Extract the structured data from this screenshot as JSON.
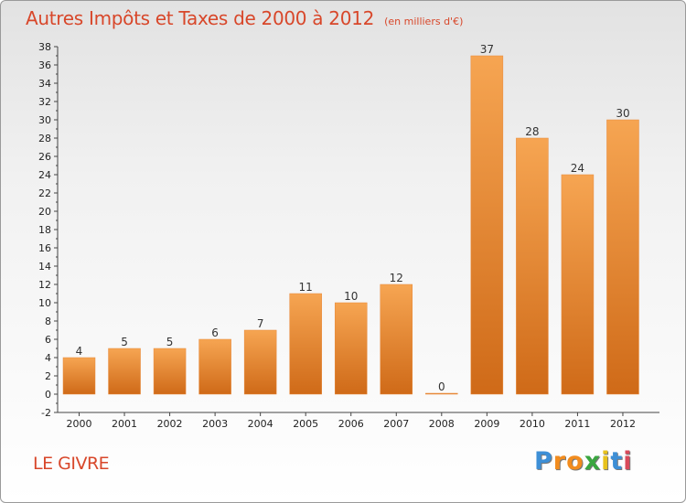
{
  "chart_data": {
    "type": "bar",
    "title": "Autres Impôts et Taxes de 2000 à 2012",
    "subtitle": "(en milliers d'€)",
    "categories": [
      "2000",
      "2001",
      "2002",
      "2003",
      "2004",
      "2005",
      "2006",
      "2007",
      "2008",
      "2009",
      "2010",
      "2011",
      "2012"
    ],
    "values": [
      4,
      5,
      5,
      6,
      7,
      11,
      10,
      12,
      0,
      37,
      28,
      24,
      30
    ],
    "value_labels": [
      "4",
      "5",
      "5",
      "6",
      "7",
      "11",
      "10",
      "12",
      "0",
      "37",
      "28",
      "24",
      "30"
    ],
    "ylim": [
      -2,
      38
    ],
    "yticks": [
      -2,
      0,
      2,
      4,
      6,
      8,
      10,
      12,
      14,
      16,
      18,
      20,
      22,
      24,
      26,
      28,
      30,
      32,
      34,
      36,
      38
    ],
    "grid": false,
    "bar_color": "#f0913d"
  },
  "place_name": "LE GIVRE",
  "logo": {
    "letters": [
      "P",
      "r",
      "o",
      "x",
      "i",
      "t",
      "i"
    ],
    "colors": [
      "#3d8fd6",
      "#f28c1e",
      "#f28c1e",
      "#3aa640",
      "#e8c21c",
      "#3d8fd6",
      "#d94a5a"
    ]
  }
}
